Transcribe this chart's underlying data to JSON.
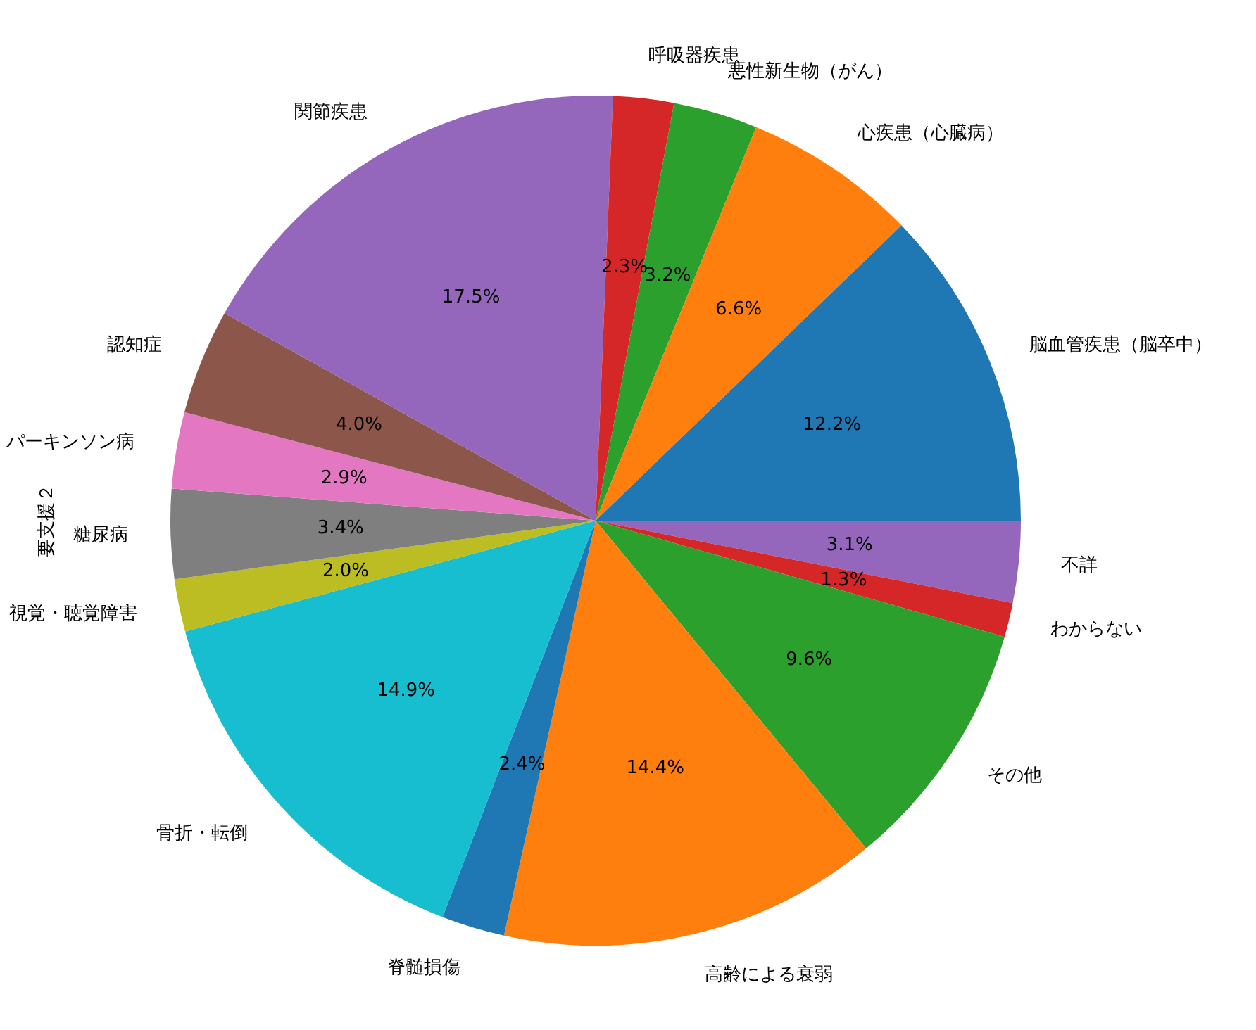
{
  "chart_data": {
    "type": "pie",
    "ylabel": "要支援２",
    "categories": [
      "脳血管疾患（脳卒中）",
      "心疾患（心臓病）",
      "悪性新生物（がん）",
      "呼吸器疾患",
      "関節疾患",
      "認知症",
      "パーキンソン病",
      "糖尿病",
      "視覚・聴覚障害",
      "骨折・転倒",
      "脊髄損傷",
      "高齢による衰弱",
      "その他",
      "わからない",
      "不詳"
    ],
    "values": [
      12.2,
      6.6,
      3.2,
      2.3,
      17.5,
      4.0,
      2.9,
      3.4,
      2.0,
      14.9,
      2.4,
      14.4,
      9.6,
      1.3,
      3.1
    ],
    "colors": [
      "#1f77b4",
      "#ff7f0e",
      "#2ca02c",
      "#d62728",
      "#9467bd",
      "#8c564b",
      "#e377c2",
      "#7f7f7f",
      "#bcbd22",
      "#17becf",
      "#1f77b4",
      "#ff7f0e",
      "#2ca02c",
      "#d62728",
      "#9467bd"
    ],
    "value_labels": [
      "12.2%",
      "6.6%",
      "3.2%",
      "2.3%",
      "17.5%",
      "4.0%",
      "2.9%",
      "3.4%",
      "2.0%",
      "14.9%",
      "2.4%",
      "14.4%",
      "9.6%",
      "1.3%",
      "3.1%"
    ],
    "legend": false
  }
}
